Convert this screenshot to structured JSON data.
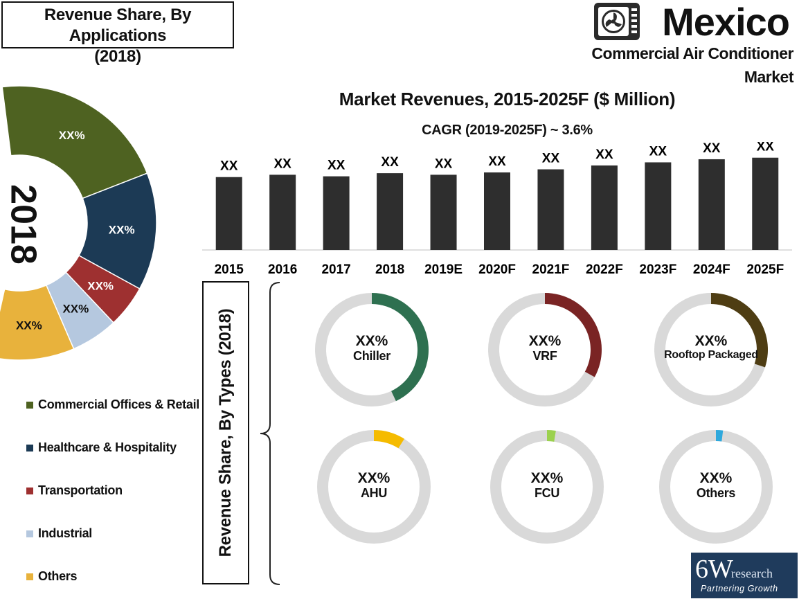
{
  "header": {
    "title_line1": "Revenue Share, By Applications",
    "title_line2": "(2018)"
  },
  "brand": {
    "country": "Mexico",
    "market_line1": "Commercial Air Conditioner",
    "market_line2": "Market",
    "icon": "air-conditioner-fan-icon"
  },
  "applications_donut": {
    "year_label": "2018",
    "segments": [
      {
        "name": "Commercial Offices & Retail",
        "label": "XX%",
        "share": 0.38,
        "color": "#4e6221"
      },
      {
        "name": "Healthcare & Hospitality",
        "label": "XX%",
        "share": 0.25,
        "color": "#1c3a55"
      },
      {
        "name": "Transportation",
        "label": "XX%",
        "share": 0.09,
        "color": "#9e3030"
      },
      {
        "name": "Industrial",
        "label": "XX%",
        "share": 0.1,
        "color": "#b5c8df"
      },
      {
        "name": "Others",
        "label": "XX%",
        "share": 0.18,
        "color": "#e8b23c"
      }
    ]
  },
  "chart_data": [
    {
      "type": "bar",
      "title": "Market Revenues, 2015-2025F ($ Million)",
      "subtitle": "CAGR (2019-2025F) ~ 3.6%",
      "categories": [
        "2015",
        "2016",
        "2017",
        "2018",
        "2019E",
        "2020F",
        "2021F",
        "2022F",
        "2023F",
        "2024F",
        "2025F"
      ],
      "values": [
        94,
        97,
        95,
        99,
        97,
        100,
        104,
        109,
        113,
        117,
        119
      ],
      "value_labels": [
        "XX",
        "XX",
        "XX",
        "XX",
        "XX",
        "XX",
        "XX",
        "XX",
        "XX",
        "XX",
        "XX"
      ],
      "ylim": [
        0,
        125
      ],
      "bar_color": "#2e2e2e",
      "grid": false
    }
  ],
  "types_panel": {
    "label": "Revenue Share, By Types (2018)",
    "items": [
      {
        "name": "Chiller",
        "label": "XX%",
        "share": 0.43,
        "color": "#2e7050"
      },
      {
        "name": "VRF",
        "label": "XX%",
        "share": 0.33,
        "color": "#7a2424"
      },
      {
        "name": "Rooftop Packaged",
        "label": "XX%",
        "share": 0.3,
        "color": "#4e3d13"
      },
      {
        "name": "AHU",
        "label": "XX%",
        "share": 0.09,
        "color": "#f5bb00"
      },
      {
        "name": "FCU",
        "label": "XX%",
        "share": 0.025,
        "color": "#9bd14e"
      },
      {
        "name": "Others",
        "label": "XX%",
        "share": 0.02,
        "color": "#2ea8dc"
      }
    ],
    "track_color": "#d9d9d9"
  },
  "logo": {
    "big": "6W",
    "small": "research",
    "tagline": "Partnering Growth"
  }
}
